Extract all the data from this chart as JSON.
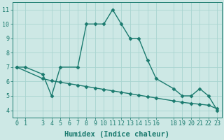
{
  "line1_x": [
    0,
    1,
    3,
    4,
    5,
    7,
    8,
    9,
    10,
    11,
    12,
    13,
    14,
    15,
    16,
    18,
    19,
    20,
    21,
    22,
    23
  ],
  "line1_y": [
    7,
    7,
    6.5,
    5,
    7,
    7,
    10,
    10,
    10,
    11,
    10,
    9,
    9,
    7.5,
    6.2,
    5.5,
    5,
    5,
    5.5,
    5,
    4
  ],
  "line2_x": [
    0,
    3,
    4,
    5,
    6,
    7,
    8,
    9,
    10,
    11,
    12,
    13,
    14,
    15,
    16,
    18,
    19,
    20,
    21,
    22,
    23
  ],
  "line2_y": [
    7.0,
    6.2,
    6.05,
    5.95,
    5.85,
    5.75,
    5.65,
    5.55,
    5.45,
    5.35,
    5.25,
    5.15,
    5.05,
    4.95,
    4.85,
    4.65,
    4.55,
    4.48,
    4.42,
    4.35,
    4.1
  ],
  "color": "#1a7a6e",
  "bg_color": "#cde8e5",
  "grid_color": "#a8d4d0",
  "xlabel": "Humidex (Indice chaleur)",
  "ylim": [
    3.5,
    11.5
  ],
  "xlim": [
    -0.5,
    23.5
  ],
  "yticks": [
    4,
    5,
    6,
    7,
    8,
    9,
    10,
    11
  ],
  "xtick_labels": [
    "0",
    "1",
    "3",
    "4",
    "5",
    "6",
    "7",
    "8",
    "9",
    "10",
    "11",
    "12",
    "13",
    "14",
    "15",
    "16",
    "18",
    "19",
    "20",
    "21",
    "22",
    "23"
  ],
  "xtick_positions": [
    0,
    1,
    3,
    4,
    5,
    6,
    7,
    8,
    9,
    10,
    11,
    12,
    13,
    14,
    15,
    16,
    18,
    19,
    20,
    21,
    22,
    23
  ],
  "marker": "D",
  "markersize": 2.5,
  "linewidth": 1.0,
  "xlabel_fontsize": 7.5,
  "tick_fontsize": 6
}
